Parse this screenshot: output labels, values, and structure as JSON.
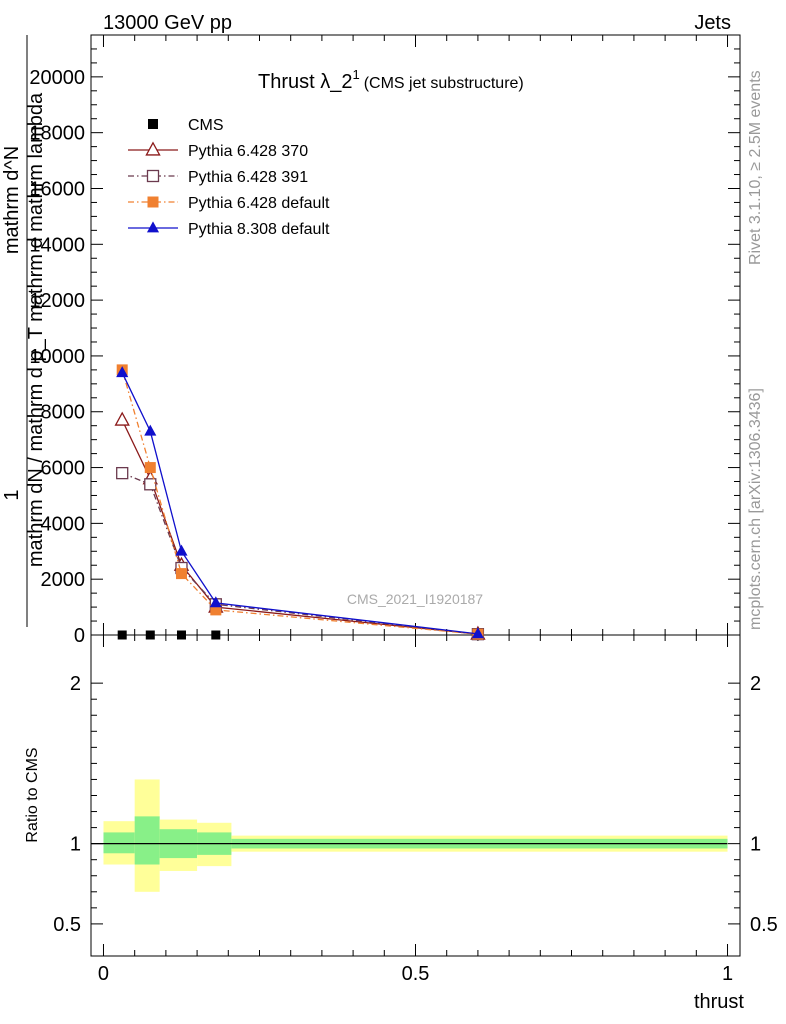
{
  "header": {
    "left": "13000 GeV pp",
    "right": "Jets"
  },
  "side_labels": {
    "rivet": "Rivet 3.1.10, ≥ 2.5M events",
    "mcplots": "mcplots.cern.ch [arXiv:1306.3436]"
  },
  "chart_data": {
    "type": "line",
    "title": "Thrust λ_2",
    "title_sup": "1",
    "subtitle": "(CMS jet substructure)",
    "watermark": "CMS_2021_I1920187",
    "ylabel_top": "1",
    "ylabel_frac_num": "mathrm d^N",
    "ylabel_frac_den": "mathrm dN / mathrm d p_T mathrm d mathrm lambda",
    "ylabel_ratio": "Ratio to CMS",
    "xlabel": "thrust",
    "xlim": [
      -0.02,
      1.02
    ],
    "ylim_main": [
      0,
      21500
    ],
    "ylim_ratio": [
      0.3,
      2.3
    ],
    "main_yticks": [
      0,
      2000,
      4000,
      6000,
      8000,
      10000,
      12000,
      14000,
      16000,
      18000,
      20000
    ],
    "main_ytick_labels": [
      "0",
      "2000",
      "4000",
      "6000",
      "8000",
      "10000",
      "12000",
      "14000",
      "16000",
      "18000",
      "20000"
    ],
    "ratio_yticks": [
      0.5,
      1,
      2
    ],
    "ratio_ytick_labels": [
      "0.5",
      "1",
      "2"
    ],
    "xticks": [
      0,
      0.5,
      1
    ],
    "xtick_labels": [
      "0",
      "0.5",
      "1"
    ],
    "legend_position": "top-left",
    "series": [
      {
        "name": "CMS",
        "color": "#000000",
        "marker": "square-filled",
        "dash": "",
        "x": [
          0.03,
          0.075,
          0.125,
          0.18
        ],
        "y": [
          0,
          0,
          0,
          0
        ]
      },
      {
        "name": "Pythia 6.428 370",
        "color": "#8b1a1a",
        "marker": "triangle-open",
        "dash": "",
        "x": [
          0.03,
          0.075,
          0.125,
          0.18,
          0.6
        ],
        "y": [
          7700,
          5600,
          2500,
          1000,
          30
        ]
      },
      {
        "name": "Pythia 6.428 391",
        "color": "#6b3a4e",
        "marker": "square-open",
        "dash": "6,3,1.5,3",
        "x": [
          0.03,
          0.075,
          0.125,
          0.18,
          0.6
        ],
        "y": [
          5800,
          5400,
          2400,
          1100,
          30
        ]
      },
      {
        "name": "Pythia 6.428 default",
        "color": "#f08030",
        "marker": "square-filled",
        "dash": "6,3,1.5,3",
        "x": [
          0.03,
          0.075,
          0.125,
          0.18,
          0.6
        ],
        "y": [
          9500,
          6000,
          2200,
          900,
          30
        ]
      },
      {
        "name": "Pythia 8.308 default",
        "color": "#1010cc",
        "marker": "triangle-filled",
        "dash": "",
        "x": [
          0.03,
          0.075,
          0.125,
          0.18,
          0.6
        ],
        "y": [
          9400,
          7300,
          3000,
          1150,
          40
        ]
      }
    ],
    "ratio_bands": [
      {
        "x0": 0.0,
        "x1": 0.05,
        "yellow": [
          0.87,
          1.14
        ],
        "green": [
          0.94,
          1.07
        ]
      },
      {
        "x0": 0.05,
        "x1": 0.09,
        "yellow": [
          0.7,
          1.4
        ],
        "green": [
          0.87,
          1.17
        ]
      },
      {
        "x0": 0.09,
        "x1": 0.15,
        "yellow": [
          0.83,
          1.15
        ],
        "green": [
          0.91,
          1.09
        ]
      },
      {
        "x0": 0.15,
        "x1": 0.205,
        "yellow": [
          0.86,
          1.13
        ],
        "green": [
          0.93,
          1.07
        ]
      },
      {
        "x0": 0.205,
        "x1": 1.0,
        "yellow": [
          0.95,
          1.05
        ],
        "green": [
          0.97,
          1.03
        ]
      }
    ]
  }
}
